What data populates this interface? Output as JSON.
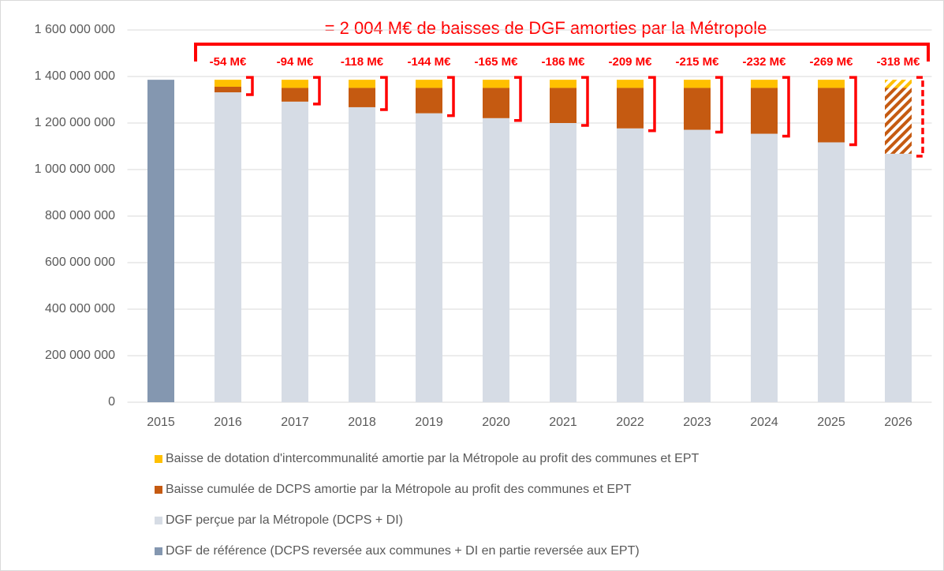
{
  "chart_data": {
    "type": "stacked_bar",
    "title": "= 2 004 M€ de baisses de DGF amorties par la Métropole",
    "categories": [
      "2015",
      "2016",
      "2017",
      "2018",
      "2019",
      "2020",
      "2021",
      "2022",
      "2023",
      "2024",
      "2025",
      "2026"
    ],
    "series": [
      {
        "name": "DGF de référence (DCPS reversée aux communes + DI en partie reversée aux EPT)",
        "color": "#8497b0",
        "values": [
          1386000000,
          null,
          null,
          null,
          null,
          null,
          null,
          null,
          null,
          null,
          null,
          null
        ]
      },
      {
        "name": "DGF perçue par la Métropole (DCPS + DI)",
        "color": "#d6dce5",
        "values": [
          null,
          1332000000,
          1292000000,
          1268000000,
          1242000000,
          1221000000,
          1200000000,
          1177000000,
          1171000000,
          1154000000,
          1117000000,
          1068000000
        ]
      },
      {
        "name": "Baisse cumulée de DCPS amortie par la Métropole au profit des communes et EPT",
        "color": "#c55a11",
        "values": [
          null,
          24000000,
          59000000,
          83000000,
          109000000,
          130000000,
          151000000,
          174000000,
          180000000,
          197000000,
          234000000,
          283000000
        ]
      },
      {
        "name": "Baisse de dotation d'intercommunalité amortie par la Métropole au profit des communes et EPT",
        "color": "#ffc000",
        "values": [
          null,
          30000000,
          35000000,
          35000000,
          35000000,
          35000000,
          35000000,
          35000000,
          35000000,
          35000000,
          35000000,
          35000000
        ]
      }
    ],
    "bracket_labels": [
      null,
      "-54 M€",
      "-94 M€",
      "-118 M€",
      "-144 M€",
      "-165 M€",
      "-186 M€",
      "-209 M€",
      "-215 M€",
      "-232 M€",
      "-269 M€",
      "-318 M€"
    ],
    "hatched": "2026",
    "ylim": [
      0,
      1600000000
    ],
    "yticks": [
      0,
      {
        "value": 200000000,
        "label": "200 000 000"
      },
      {
        "value": 400000000,
        "label": "400 000 000"
      },
      {
        "value": 600000000,
        "label": "600 000 000"
      },
      {
        "value": 800000000,
        "label": "800 000 000"
      },
      {
        "value": 1000000000,
        "label": "1 000 000 000"
      },
      {
        "value": 1200000000,
        "label": "1 200 000 000"
      },
      {
        "value": 1400000000,
        "label": "1 400 000 000"
      },
      {
        "value": 1600000000,
        "label": "1 600 000 000"
      }
    ],
    "grid": true,
    "legend": "bottom"
  }
}
